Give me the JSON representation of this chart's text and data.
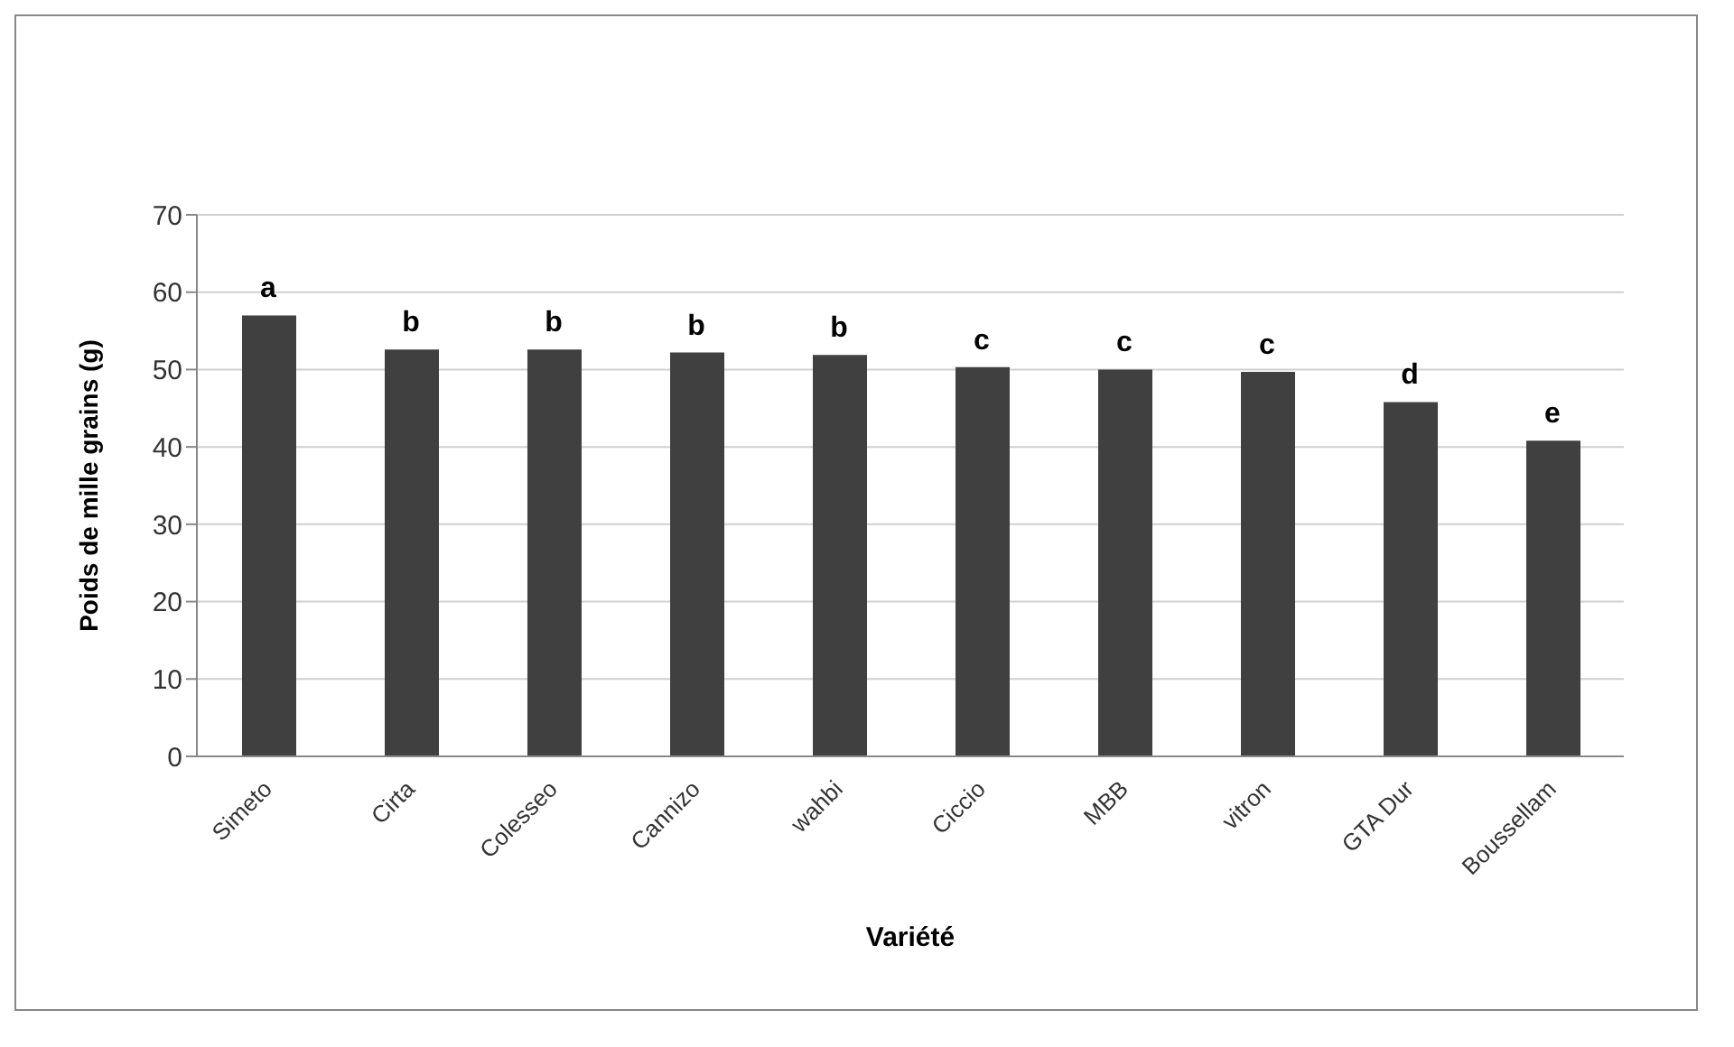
{
  "chart_data": {
    "type": "bar",
    "xlabel": "Variété",
    "ylabel": "Poids de mille grains (g)",
    "categories": [
      "Simeto",
      "Cirta",
      "Colesseo",
      "Cannizo",
      "wahbi",
      "Ciccio",
      "MBB",
      "vitron",
      "GTA Dur",
      "Boussellam"
    ],
    "values": [
      57.0,
      52.6,
      52.6,
      52.2,
      51.9,
      50.3,
      50.0,
      49.7,
      45.8,
      40.8
    ],
    "color": "#404040",
    "ylim": [
      0,
      70
    ],
    "yticks": [
      0,
      10,
      20,
      30,
      40,
      50,
      60,
      70
    ],
    "grid": "y",
    "legend": false,
    "annotations": [
      {
        "text": "a",
        "x": "Simeto",
        "y": 57.0
      },
      {
        "text": "b",
        "x": "Cirta",
        "y": 52.6
      },
      {
        "text": "b",
        "x": "Colesseo",
        "y": 52.6
      },
      {
        "text": "b",
        "x": "Cannizo",
        "y": 52.2
      },
      {
        "text": "b",
        "x": "wahbi",
        "y": 51.9
      },
      {
        "text": "c",
        "x": "Ciccio",
        "y": 50.3
      },
      {
        "text": "c",
        "x": "MBB",
        "y": 50.0
      },
      {
        "text": "c",
        "x": "vitron",
        "y": 49.7
      },
      {
        "text": "d",
        "x": "GTA Dur",
        "y": 45.8
      },
      {
        "text": "e",
        "x": "Boussellam",
        "y": 40.8
      }
    ]
  }
}
